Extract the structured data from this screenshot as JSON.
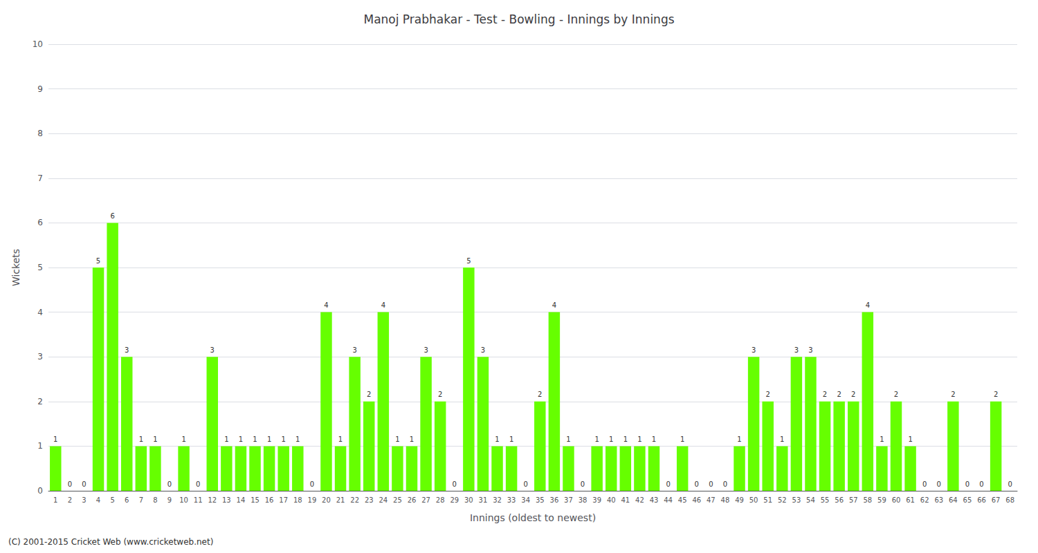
{
  "chart_data": {
    "type": "bar",
    "title": "Manoj Prabhakar - Test - Bowling - Innings by Innings",
    "xlabel": "Innings (oldest to newest)",
    "ylabel": "Wickets",
    "annotations": [
      "(C) 2001-2015 Cricket Web (www.cricketweb.net)"
    ],
    "categories": [
      "1",
      "2",
      "3",
      "4",
      "5",
      "6",
      "7",
      "8",
      "9",
      "10",
      "11",
      "12",
      "13",
      "14",
      "15",
      "16",
      "17",
      "18",
      "19",
      "20",
      "21",
      "22",
      "23",
      "24",
      "25",
      "26",
      "27",
      "28",
      "29",
      "30",
      "31",
      "32",
      "33",
      "34",
      "35",
      "36",
      "37",
      "38",
      "39",
      "40",
      "41",
      "42",
      "43",
      "44",
      "45",
      "46",
      "47",
      "48",
      "49",
      "50",
      "51",
      "52",
      "53",
      "54",
      "55",
      "56",
      "57",
      "58",
      "59",
      "60",
      "61",
      "62",
      "63",
      "64",
      "65",
      "66",
      "67",
      "68"
    ],
    "values": [
      1,
      0,
      0,
      5,
      6,
      3,
      1,
      1,
      0,
      1,
      0,
      3,
      1,
      1,
      1,
      1,
      1,
      1,
      0,
      4,
      1,
      3,
      2,
      4,
      1,
      1,
      3,
      2,
      0,
      5,
      3,
      1,
      1,
      0,
      2,
      4,
      1,
      0,
      1,
      1,
      1,
      1,
      1,
      0,
      1,
      0,
      0,
      0,
      1,
      3,
      2,
      1,
      3,
      3,
      2,
      2,
      2,
      4,
      1,
      2,
      1,
      0,
      0,
      2,
      0,
      0,
      2,
      0
    ],
    "color": "#66ff00",
    "ylim": [
      0,
      10
    ],
    "yticks": [
      0,
      1,
      2,
      3,
      4,
      5,
      6,
      7,
      8,
      9,
      10
    ],
    "grid": true,
    "data_labels": true
  }
}
